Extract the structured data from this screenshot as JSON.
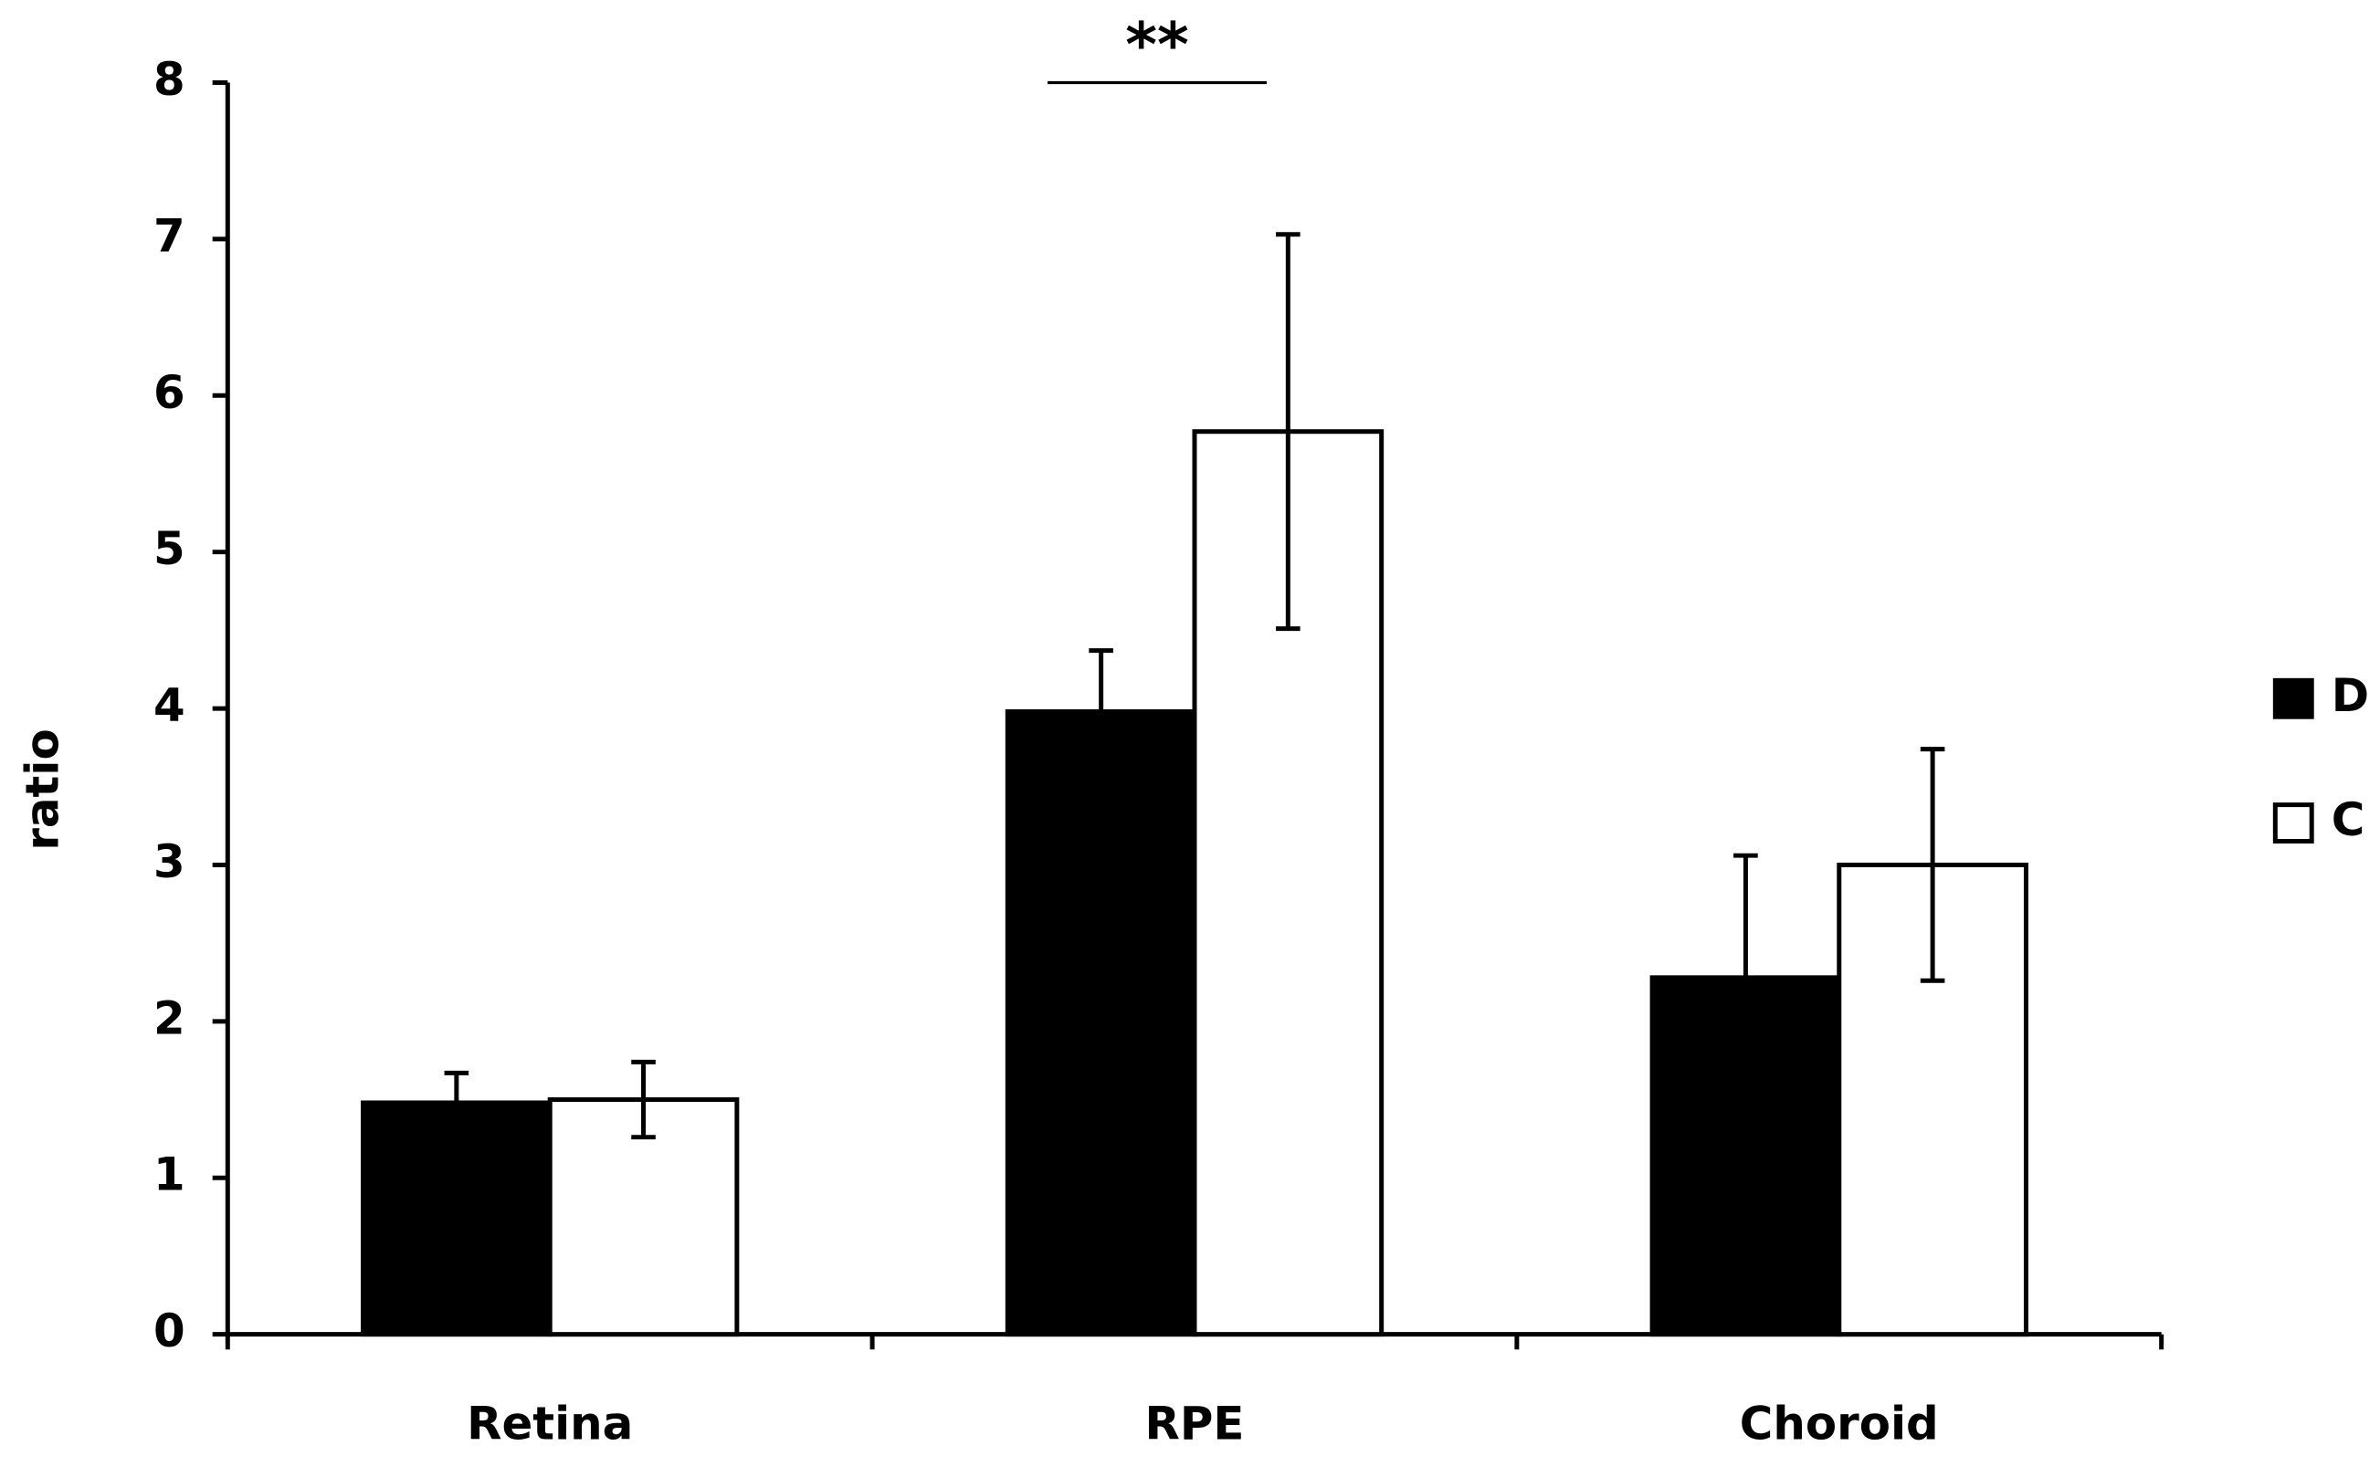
{
  "chart_data": {
    "type": "bar",
    "y_label": "ratio",
    "categories": [
      "Retina",
      "RPE",
      "Choroid"
    ],
    "series": [
      {
        "name": "D",
        "color": "#000000",
        "values": [
          1.48,
          3.98,
          2.28
        ],
        "errors": [
          0.19,
          0.39,
          0.78
        ]
      },
      {
        "name": "C",
        "color": "#ffffff",
        "values": [
          1.5,
          5.77,
          3.0
        ],
        "errors": [
          0.24,
          1.26,
          0.74
        ]
      }
    ],
    "ylim": [
      0,
      8
    ],
    "yticks": [
      0,
      1,
      2,
      3,
      4,
      5,
      6,
      7,
      8
    ],
    "legend": "right",
    "annotations": [
      {
        "text": "**",
        "category": 1
      }
    ]
  }
}
